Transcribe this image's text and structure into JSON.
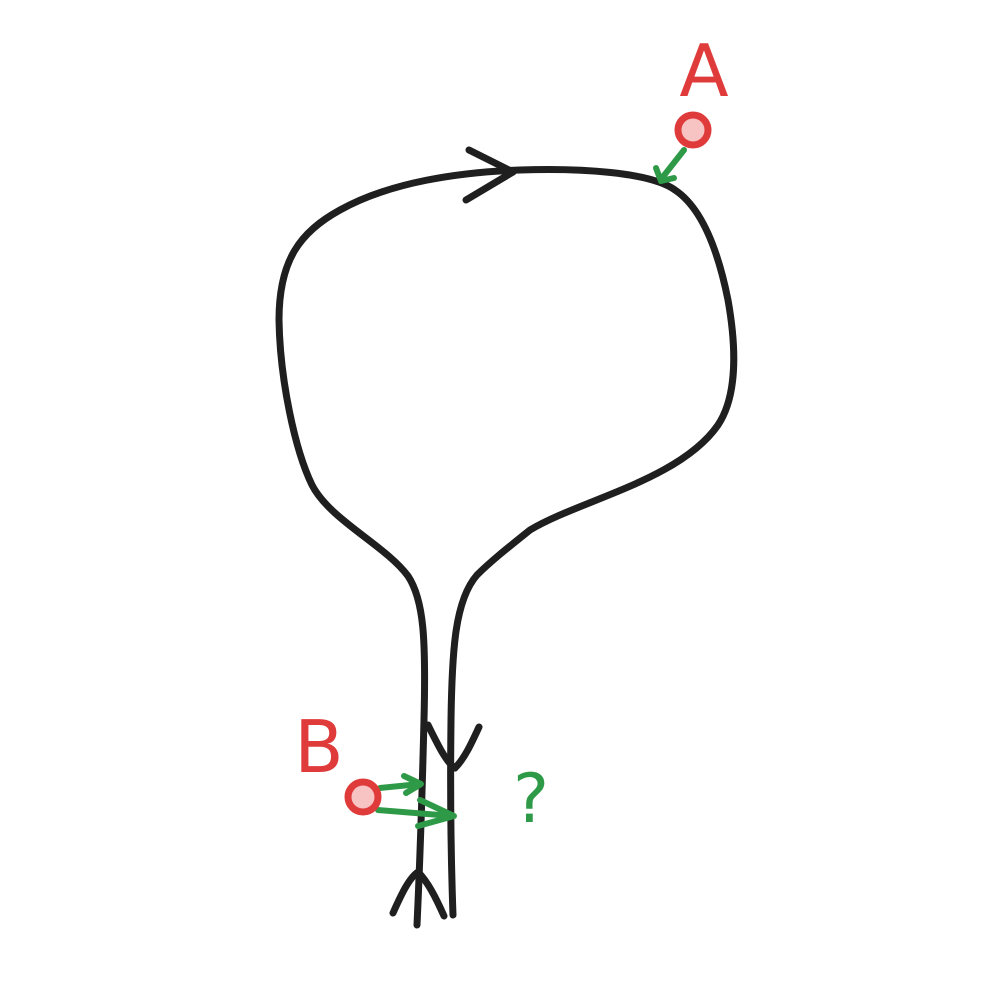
{
  "labels": {
    "a": "A",
    "b": "B",
    "question": "?"
  },
  "colors": {
    "path": "#1f1f1f",
    "point_stroke": "#e03b3b",
    "point_fill": "#f7c3c3",
    "arrow": "#2e9a48",
    "label": "#e03b3b",
    "background": "#ffffff"
  }
}
